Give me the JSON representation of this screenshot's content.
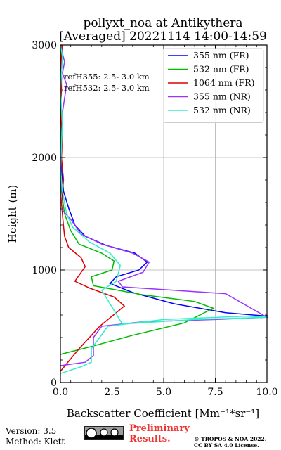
{
  "chart_data": {
    "type": "line",
    "title": "pollyxt_noa at Antikythera",
    "subtitle": "[Averaged] 20221114 14:00-14:59",
    "xlabel": "Backscatter Coefficient [Mm⁻¹*sr⁻¹]",
    "ylabel": "Height (m)",
    "xlim": [
      0,
      10
    ],
    "ylim": [
      0,
      3000
    ],
    "xticks": [
      "0.0",
      "2.5",
      "5.0",
      "7.5",
      "10.0"
    ],
    "yticks": [
      "0",
      "1000",
      "2000",
      "3000"
    ],
    "grid": true,
    "legend_position": "top-right",
    "annotations": [
      "refH355:  2.5- 3.0 km",
      "refH532:  2.5- 3.0 km"
    ],
    "series": [
      {
        "name": "355 nm (FR)",
        "color": "#0000ff",
        "x": [
          10.5,
          10.0,
          8.0,
          5.5,
          3.5,
          2.4,
          2.7,
          3.8,
          4.2,
          3.6,
          2.2,
          1.2,
          0.7,
          0.4,
          0.15,
          0.05,
          0.0,
          0.03,
          0.0,
          0.05,
          0.02,
          0.04
        ],
        "y": [
          600,
          590,
          620,
          700,
          800,
          880,
          940,
          1000,
          1070,
          1150,
          1220,
          1300,
          1400,
          1550,
          1700,
          1900,
          2100,
          2300,
          2500,
          2700,
          2900,
          3000
        ]
      },
      {
        "name": "532 nm (FR)",
        "color": "#00bb00",
        "x": [
          0.0,
          1.5,
          3.5,
          6.0,
          7.4,
          6.5,
          4.0,
          1.6,
          1.5,
          2.5,
          2.6,
          2.0,
          0.9,
          0.5,
          0.2,
          0.05,
          0.0,
          0.03,
          0.0,
          0.03
        ],
        "y": [
          250,
          320,
          420,
          530,
          660,
          720,
          780,
          860,
          940,
          1000,
          1080,
          1150,
          1230,
          1350,
          1500,
          1700,
          2000,
          2400,
          2800,
          3000
        ]
      },
      {
        "name": "1064 nm (FR)",
        "color": "#dd0000",
        "x": [
          0.0,
          0.9,
          1.9,
          3.1,
          2.6,
          1.4,
          0.7,
          1.2,
          1.0,
          0.4,
          0.2,
          0.12,
          0.05,
          0.15,
          0.05,
          0.1,
          0.0,
          0.05,
          0.03,
          0.08
        ],
        "y": [
          100,
          300,
          500,
          680,
          760,
          840,
          900,
          1030,
          1110,
          1200,
          1300,
          1450,
          1600,
          1800,
          2000,
          2200,
          2400,
          2600,
          2800,
          3000
        ]
      },
      {
        "name": "355 nm (NR)",
        "color": "#9933ff",
        "x": [
          0.0,
          1.2,
          1.6,
          1.6,
          2.0,
          4.0,
          7.5,
          10.0,
          8.0,
          3.0,
          2.8,
          4.0,
          4.3,
          3.5,
          2.0,
          1.0,
          0.5,
          0.0,
          0.02,
          0.1,
          0.3,
          0.1,
          0.2,
          0.0
        ],
        "y": [
          150,
          180,
          240,
          400,
          500,
          540,
          560,
          580,
          790,
          850,
          900,
          980,
          1070,
          1150,
          1230,
          1320,
          1450,
          1550,
          1900,
          2400,
          2650,
          2750,
          2850,
          3000
        ]
      },
      {
        "name": "532 nm (NR)",
        "color": "#33eecc",
        "x": [
          0.0,
          1.0,
          1.5,
          1.5,
          2.3,
          5.0,
          9.0,
          10.0,
          6.5,
          3.0,
          2.0,
          2.7,
          2.9,
          2.4,
          1.4,
          0.6,
          0.3,
          0.1,
          0.0,
          0.1,
          0.0,
          0.1,
          0.0
        ],
        "y": [
          80,
          140,
          180,
          300,
          500,
          560,
          590,
          580,
          560,
          520,
          820,
          900,
          1040,
          1150,
          1250,
          1380,
          1500,
          1700,
          1900,
          2300,
          2600,
          2900,
          3000
        ]
      }
    ]
  },
  "footer": {
    "version": "Version: 3.5",
    "method": "Method: Klett",
    "preliminary_line1": "Preliminary",
    "preliminary_line2": "Results.",
    "copyright_line1": "© TROPOS & NOA 2022.",
    "copyright_line2": "CC BY SA 4.0 License.",
    "badge_icons": [
      "cc-icon",
      "info-icon",
      "by-icon"
    ]
  }
}
